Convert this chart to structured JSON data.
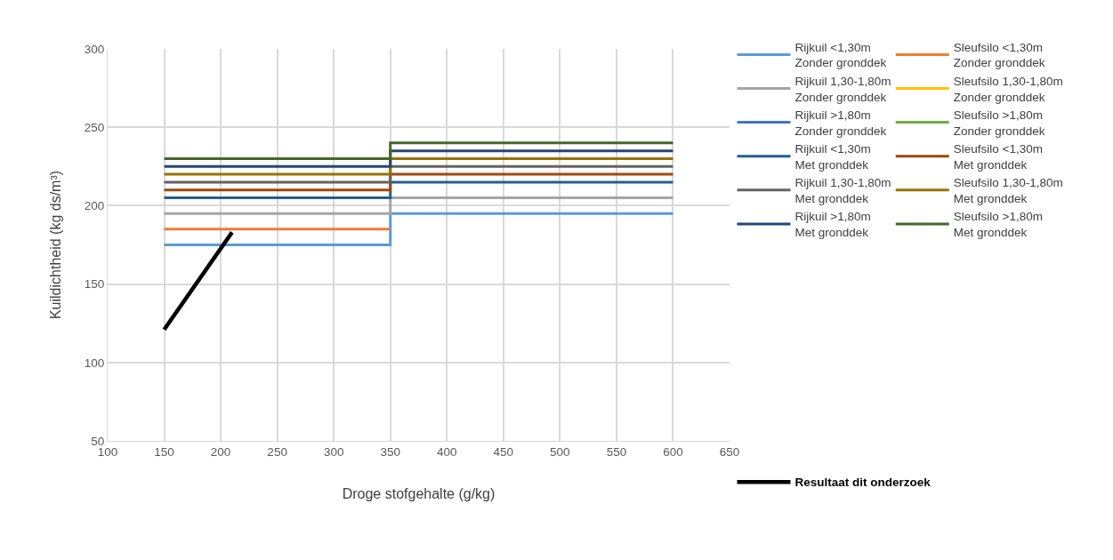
{
  "chart_data": {
    "type": "step",
    "xlabel": "Droge stofgehalte (g/kg)",
    "ylabel": "Kuildichtheid (kg ds/m³)",
    "x": [
      150,
      350,
      600
    ],
    "xlim": [
      100,
      650
    ],
    "xticks": [
      100,
      150,
      200,
      250,
      300,
      350,
      400,
      450,
      500,
      550,
      600,
      650
    ],
    "ylim": [
      50,
      300
    ],
    "yticks": [
      50,
      100,
      150,
      200,
      250,
      300
    ],
    "grid": true,
    "legend": "right",
    "line_style": "solid",
    "marker": "none",
    "series": [
      {
        "name": "Rijkuil <1,30m\nZonder gronddek",
        "color": "#5b9bd5",
        "values": [
          175,
          195,
          195
        ]
      },
      {
        "name": "Sleufsilo <1,30m\nZonder gronddek",
        "color": "#ed7d31",
        "values": [
          185,
          185,
          null
        ]
      },
      {
        "name": "Rijkuil 1,30-1,80m\nZonder gronddek",
        "color": "#a5a5a5",
        "values": [
          195,
          205,
          205
        ]
      },
      {
        "name": "Sleufsilo 1,30-1,80m\nZonder gronddek",
        "color": "#ffc000",
        "values": [
          null,
          null,
          null
        ]
      },
      {
        "name": "Rijkuil >1,80m\nZonder gronddek",
        "color": "#4472c4",
        "values": [
          null,
          null,
          null
        ]
      },
      {
        "name": "Sleufsilo >1,80m\nZonder gronddek",
        "color": "#70ad47",
        "values": [
          null,
          null,
          null
        ]
      },
      {
        "name": "Rijkuil <1,30m\nMet gronddek",
        "color": "#255e91",
        "values": [
          205,
          215,
          215
        ]
      },
      {
        "name": "Sleufsilo <1,30m\nMet gronddek",
        "color": "#9e480e",
        "values": [
          210,
          220,
          220
        ]
      },
      {
        "name": "Rijkuil 1,30-1,80m\nMet gronddek",
        "color": "#636363",
        "values": [
          215,
          225,
          225
        ]
      },
      {
        "name": "Sleufsilo 1,30-1,80m\nMet gronddek",
        "color": "#997300",
        "values": [
          220,
          230,
          230
        ]
      },
      {
        "name": "Rijkuil >1,80m\nMet gronddek",
        "color": "#264478",
        "values": [
          225,
          235,
          235
        ]
      },
      {
        "name": "Sleufsilo >1,80m\nMet gronddek",
        "color": "#43682b",
        "values": [
          230,
          240,
          240
        ]
      },
      {
        "name": "Resultaat dit onderzoek",
        "type": "line",
        "color": "#000000",
        "x": [
          150,
          210
        ],
        "values": [
          121,
          183
        ]
      }
    ]
  }
}
